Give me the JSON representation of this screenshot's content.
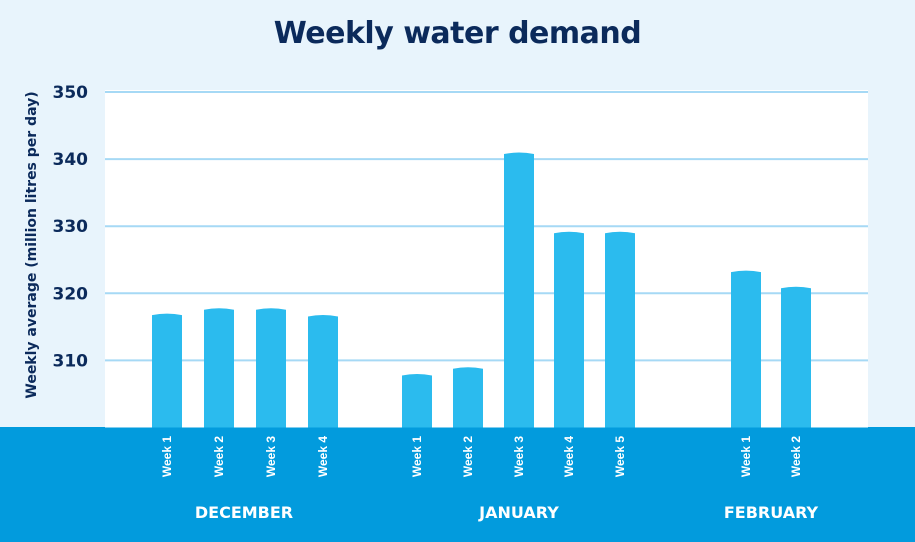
{
  "chart_data": {
    "type": "bar",
    "title": "Weekly water demand",
    "ylabel": "Weekly average (million litres per day)",
    "xlabel": "",
    "ylim": [
      300,
      350
    ],
    "yticks": [
      310,
      320,
      330,
      340,
      350
    ],
    "grid": true,
    "groups": [
      {
        "label": "DECEMBER",
        "categories": [
          "Week 1",
          "Week 2",
          "Week 3",
          "Week 4"
        ],
        "values": [
          316.9,
          317.7,
          317.7,
          316.7
        ]
      },
      {
        "label": "JANUARY",
        "categories": [
          "Week 1",
          "Week 2",
          "Week 3",
          "Week 4",
          "Week 5"
        ],
        "values": [
          307.9,
          308.9,
          340.9,
          329.1,
          329.1
        ]
      },
      {
        "label": "FEBRUARY",
        "categories": [
          "Week 1",
          "Week 2"
        ],
        "values": [
          323.3,
          320.9
        ]
      }
    ],
    "colors": {
      "bar": "#2bbbee",
      "band": "#029bdd",
      "grid": "#a6d9f5",
      "text": "#0b2a5b"
    }
  }
}
